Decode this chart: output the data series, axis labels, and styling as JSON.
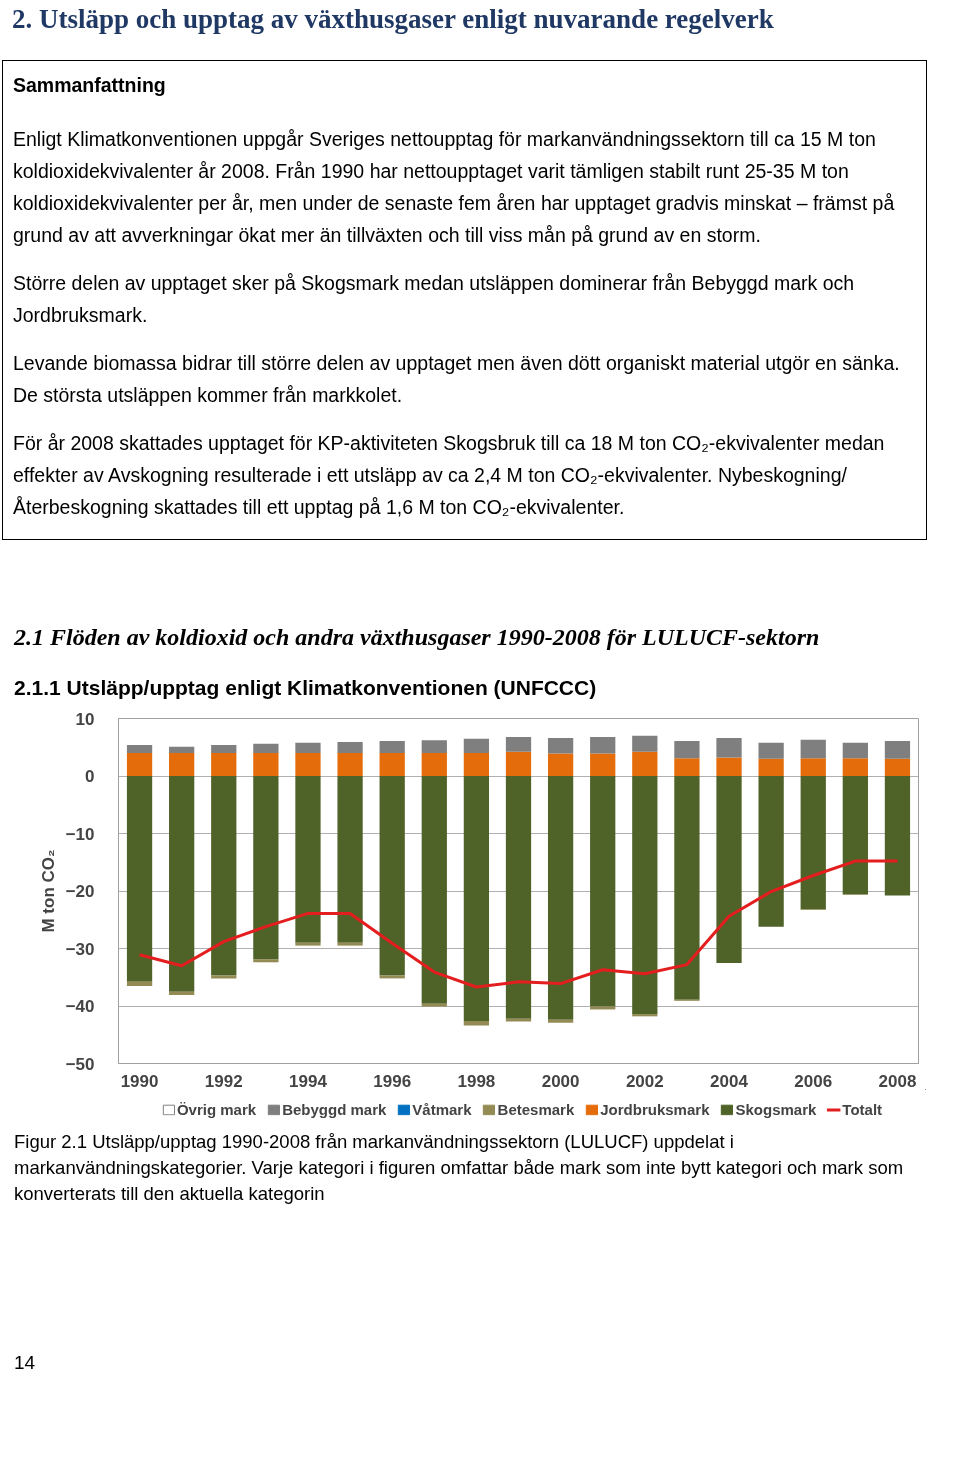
{
  "chart_data": {
    "type": "bar",
    "stacked": true,
    "title": "2.1.1 Utsläpp/upptag enligt Klimatkonventionen (UNFCCC)",
    "ylabel": "M ton CO₂",
    "annotations": [
      "2. Utsläpp och upptag av växthusgaser enligt nuvarande regelverk",
      "Sammanfattning",
      "Enligt Klimatkonventionen uppgår Sveriges nettoupptag för markanvändningssektorn till ca 15 M ton koldioxidekvivalenter år 2008. Från 1990 har nettoupptaget varit tämligen stabilt runt 25-35 M ton koldioxidekvivalenter per år, men under de senaste fem åren har upptaget gradvis minskat – främst på grund av att avverkningar ökat mer än tillväxten och till viss mån på grund av en storm.",
      "Större delen av upptaget sker på Skogsmark medan utsläppen dominerar från Bebyggd mark och Jordbruksmark.",
      "Levande biomassa bidrar till större delen av upptaget men även dött organiskt material utgör en sänka. De största utsläppen kommer från markkolet.",
      "För år 2008 skattades upptaget för KP-aktiviteten Skogsbruk till ca 18 M ton CO₂-ekvivalenter medan effekter av Avskogning resulterade i ett utsläpp av ca 2,4 M ton CO₂-ekvivalenter. Nybeskogning/Återbeskogning skattades till ett upptag på 1,6 M ton CO₂-ekvivalenter.",
      "2.1 Flöden av koldioxid och andra växthusgaser 1990-2008 för LULUCF-sektorn",
      "Figur 2.1 Utsläpp/upptag 1990-2008 från markanvändningssektorn (LULUCF) uppdelat i markanvändningskategorier. Varje kategori i figuren omfattar både mark som inte bytt kategori och mark som konverterats till den aktuella kategorin",
      "14"
    ],
    "x": [
      1990,
      1991,
      1992,
      1993,
      1994,
      1995,
      1996,
      1997,
      1998,
      1999,
      2000,
      2001,
      2002,
      2003,
      2004,
      2005,
      2006,
      2007,
      2008
    ],
    "xlim": [
      1989.5,
      2008.5
    ],
    "xticks": [
      1990,
      1992,
      1994,
      1996,
      1998,
      2000,
      2002,
      2004,
      2006,
      2008
    ],
    "ylim": [
      -50,
      10
    ],
    "yticks": [
      -50,
      -40,
      -30,
      -20,
      -10,
      0,
      10
    ],
    "grid": "y",
    "legend": "bottom",
    "series": [
      {
        "name": "Skogsmark",
        "color": "#4f6228",
        "values": [
          -35.8,
          -37.5,
          -34.7,
          -31.9,
          -29.0,
          -29.0,
          -34.7,
          -39.6,
          -42.6,
          -42.2,
          -42.4,
          -40.1,
          -41.4,
          -38.9,
          -32.5,
          -26.2,
          -23.2,
          -20.6,
          -20.8
        ]
      },
      {
        "name": "Jordbruksmark",
        "color": "#e46c0a",
        "values": [
          4.0,
          4.0,
          4.0,
          4.0,
          4.0,
          4.0,
          4.0,
          4.0,
          4.0,
          4.2,
          3.9,
          3.9,
          4.2,
          3.1,
          3.2,
          3.0,
          3.1,
          3.1,
          3.0
        ]
      },
      {
        "name": "Betesmark",
        "color": "#948a54",
        "values": [
          -0.7,
          -0.6,
          -0.5,
          -0.5,
          -0.5,
          -0.5,
          -0.5,
          -0.5,
          -0.8,
          -0.5,
          -0.5,
          -0.5,
          -0.4,
          -0.2,
          null,
          null,
          -0.1,
          -0.1,
          null
        ]
      },
      {
        "name": "Våtmark",
        "color": "#0070c0",
        "values": [
          0,
          0,
          0,
          0,
          0,
          0,
          0,
          0,
          0,
          0,
          0,
          0,
          0,
          0,
          0,
          0,
          0,
          0,
          0
        ]
      },
      {
        "name": "Bebyggd mark",
        "color": "#7f7f7f",
        "values": [
          1.4,
          1.1,
          1.4,
          1.6,
          1.8,
          1.9,
          2.1,
          2.2,
          2.5,
          2.6,
          2.7,
          2.9,
          2.8,
          3.0,
          3.4,
          2.8,
          3.2,
          2.7,
          3.1
        ]
      },
      {
        "name": "Övrig mark",
        "color": "#ffffff",
        "values": [
          0,
          0,
          0,
          0,
          0,
          0,
          0,
          0,
          0,
          0,
          0,
          0,
          0,
          0,
          0,
          0,
          0,
          0,
          0
        ]
      },
      {
        "name": "Totalt",
        "type": "line",
        "color": "#e41e1e",
        "values": [
          -31.1,
          -33.0,
          -28.8,
          -26.2,
          -23.9,
          -23.9,
          -29.1,
          -34.1,
          -36.7,
          -35.8,
          -36.1,
          -33.7,
          -34.4,
          -32.8,
          -24.4,
          -20.1,
          -17.3,
          -14.8,
          -14.8
        ]
      }
    ]
  }
}
